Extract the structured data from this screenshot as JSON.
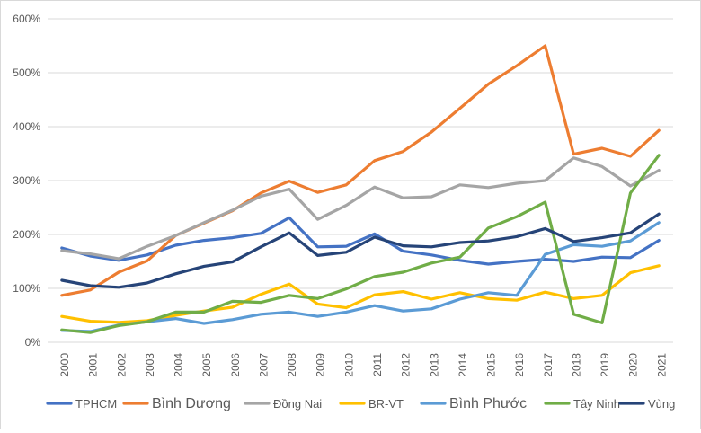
{
  "chart_data": {
    "type": "line",
    "title": "",
    "xlabel": "",
    "ylabel": "",
    "ylim": [
      0,
      600
    ],
    "y_tick_labels": [
      "0%",
      "100%",
      "200%",
      "300%",
      "400%",
      "500%",
      "600%"
    ],
    "y_ticks": [
      0,
      100,
      200,
      300,
      400,
      500,
      600
    ],
    "grid": "horizontal",
    "legend_position": "bottom",
    "categories": [
      "2000",
      "2001",
      "2002",
      "2003",
      "2004",
      "2005",
      "2006",
      "2007",
      "2008",
      "2009",
      "2010",
      "2011",
      "2012",
      "2013",
      "2014",
      "2015",
      "2016",
      "2017",
      "2018",
      "2019",
      "2020",
      "2021"
    ],
    "series": [
      {
        "name": "TPHCM",
        "color": "#4472c4",
        "values": [
          175,
          160,
          152,
          162,
          180,
          189,
          194,
          202,
          231,
          177,
          178,
          201,
          169,
          162,
          152,
          145,
          150,
          154,
          150,
          158,
          157,
          189
        ]
      },
      {
        "name": "Bình Dương",
        "color": "#ed7d31",
        "values": [
          87,
          97,
          130,
          151,
          198,
          221,
          244,
          277,
          299,
          278,
          292,
          337,
          354,
          390,
          434,
          479,
          513,
          550,
          349,
          360,
          345,
          393
        ]
      },
      {
        "name": "Đồng Nai",
        "color": "#a5a5a5",
        "values": [
          170,
          164,
          155,
          178,
          198,
          222,
          245,
          271,
          284,
          228,
          254,
          288,
          268,
          270,
          292,
          287,
          295,
          300,
          342,
          326,
          290,
          319
        ]
      },
      {
        "name": "BR-VT",
        "color": "#ffc000",
        "values": [
          48,
          39,
          37,
          40,
          50,
          58,
          65,
          89,
          108,
          71,
          64,
          88,
          94,
          80,
          92,
          81,
          78,
          93,
          81,
          87,
          129,
          142
        ]
      },
      {
        "name": "Bình Phước",
        "color": "#5b9bd5",
        "values": [
          22,
          20,
          32,
          38,
          44,
          35,
          42,
          52,
          56,
          48,
          56,
          68,
          58,
          62,
          80,
          92,
          87,
          163,
          181,
          178,
          188,
          222
        ]
      },
      {
        "name": "Tây Ninh",
        "color": "#70ad47",
        "values": [
          23,
          18,
          31,
          38,
          56,
          56,
          76,
          74,
          87,
          81,
          99,
          122,
          130,
          147,
          158,
          212,
          233,
          260,
          52,
          36,
          277,
          347
        ]
      },
      {
        "name": "Vùng",
        "color": "#264478",
        "values": [
          115,
          105,
          102,
          110,
          127,
          141,
          149,
          177,
          203,
          161,
          167,
          195,
          179,
          177,
          185,
          188,
          196,
          211,
          187,
          194,
          203,
          238
        ]
      }
    ]
  }
}
